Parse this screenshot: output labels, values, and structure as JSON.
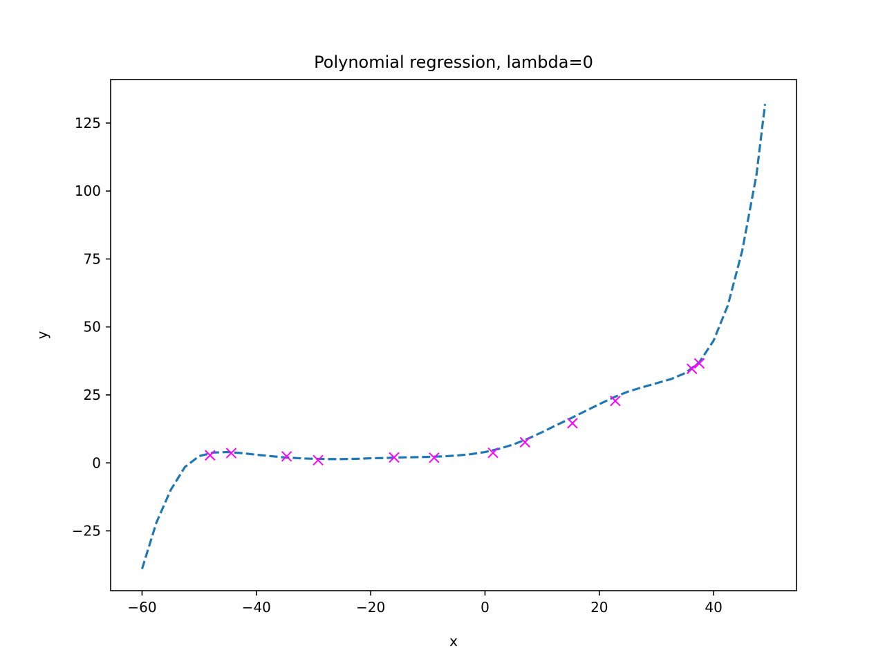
{
  "chart_data": {
    "type": "line",
    "title": "Polynomial regression, lambda=0",
    "xlabel": "x",
    "ylabel": "y",
    "xlim": [
      -65.5,
      54.5
    ],
    "ylim": [
      -47,
      141
    ],
    "xticks": [
      -60,
      -40,
      -20,
      0,
      20,
      40
    ],
    "yticks": [
      -25,
      0,
      25,
      50,
      75,
      100,
      125
    ],
    "xtick_labels": [
      "−60",
      "−40",
      "−20",
      "0",
      "20",
      "40"
    ],
    "ytick_labels": [
      "−25",
      "0",
      "25",
      "50",
      "75",
      "100",
      "125"
    ],
    "grid": false,
    "colors": {
      "fit": "#1f77b4",
      "points": "#ff00ff",
      "axes": "#000000"
    },
    "series": [
      {
        "kind": "dashed-line",
        "x": [
          -60,
          -57.5,
          -55,
          -52.5,
          -50,
          -47.5,
          -45,
          -42.5,
          -40,
          -37.5,
          -35,
          -32.5,
          -30,
          -27.5,
          -25,
          -22.5,
          -20,
          -17.5,
          -15,
          -12.5,
          -10,
          -7.5,
          -5,
          -2.5,
          0,
          2.5,
          5,
          7.5,
          10,
          12.5,
          15,
          17.5,
          20,
          22.5,
          25,
          27.5,
          30,
          32.5,
          35,
          37.5,
          40,
          42.5,
          45,
          47.5,
          49
        ],
        "y": [
          -39,
          -22,
          -10,
          -1.5,
          2.5,
          3.8,
          4.0,
          3.6,
          3.0,
          2.5,
          2.0,
          1.7,
          1.5,
          1.4,
          1.4,
          1.5,
          1.7,
          1.8,
          2.0,
          2.1,
          2.2,
          2.4,
          2.7,
          3.2,
          4.0,
          5.2,
          6.8,
          8.9,
          11.3,
          13.9,
          16.4,
          19.0,
          21.6,
          24.1,
          26.2,
          27.8,
          29.3,
          30.8,
          33.0,
          37.0,
          45.0,
          58.0,
          78.0,
          106.0,
          132.0
        ]
      },
      {
        "kind": "markers",
        "x": [
          -48.1,
          -44.4,
          -34.7,
          -29.2,
          -15.9,
          -8.9,
          1.4,
          7.0,
          15.3,
          22.8,
          36.2,
          37.5
        ],
        "y": [
          2.8,
          3.6,
          2.4,
          1.0,
          2.0,
          1.9,
          3.7,
          7.6,
          14.6,
          22.8,
          34.6,
          36.6
        ]
      }
    ]
  }
}
